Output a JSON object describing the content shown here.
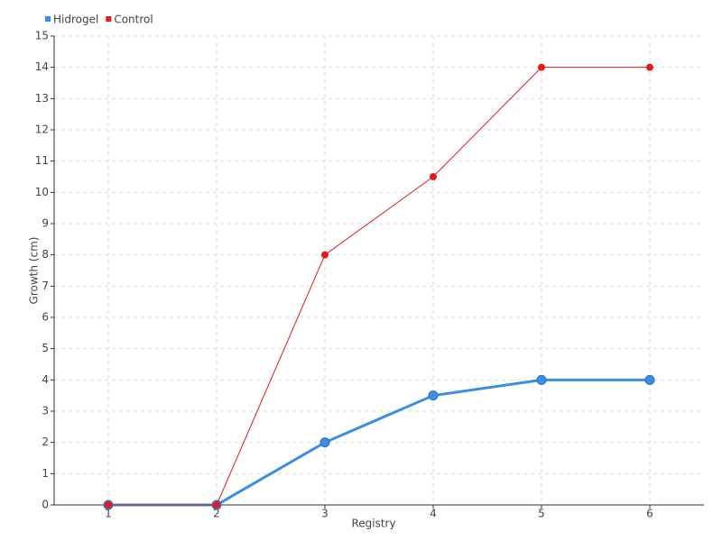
{
  "chart_data": {
    "type": "line",
    "x": [
      1,
      2,
      3,
      4,
      5,
      6
    ],
    "series": [
      {
        "name": "Hidrogel",
        "color": "#3a8ee6",
        "values": [
          0,
          0,
          2,
          3.5,
          4,
          4
        ]
      },
      {
        "name": "Control",
        "color": "#e31a1c",
        "values": [
          0,
          0,
          8,
          10.5,
          14,
          14
        ]
      }
    ],
    "x_label": "Registry",
    "y_label": "Growth (cm)",
    "xlim": [
      0.5,
      6.5
    ],
    "xticks": [
      1,
      2,
      3,
      4,
      5,
      6
    ],
    "ylim": [
      0,
      15
    ],
    "yticks": [
      0,
      1,
      2,
      3,
      4,
      5,
      6,
      7,
      8,
      9,
      10,
      11,
      12,
      13,
      14,
      15
    ],
    "grid": true,
    "legend": "top-left"
  }
}
